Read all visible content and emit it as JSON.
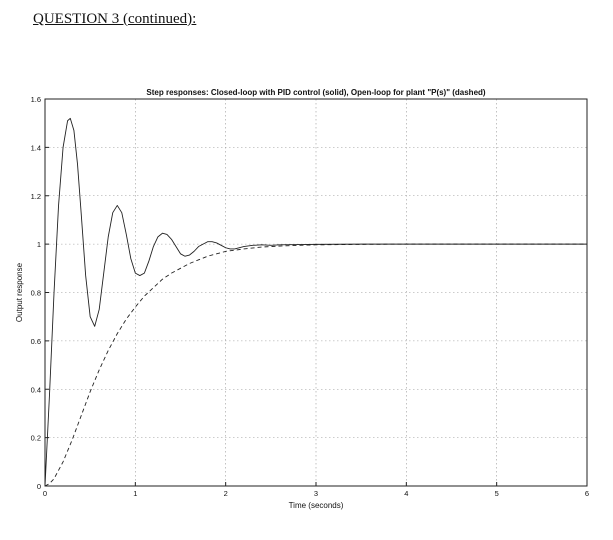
{
  "page": {
    "heading": "QUESTION 3 (continued):"
  },
  "chart_data": {
    "type": "line",
    "title": "Step responses: Closed-loop with PID control (solid), Open-loop for plant \"P(s)\" (dashed)",
    "xlabel": "Time (seconds)",
    "ylabel": "Output response",
    "xlim": [
      0,
      6
    ],
    "ylim": [
      0,
      1.6
    ],
    "xticks": [
      0,
      1,
      2,
      3,
      4,
      5,
      6
    ],
    "yticks": [
      0,
      0.2,
      0.4,
      0.6,
      0.8,
      1,
      1.2,
      1.4,
      1.6
    ],
    "xtick_labels": [
      "0",
      "1",
      "2",
      "3",
      "4",
      "5",
      "6"
    ],
    "ytick_labels": [
      "0",
      "0.2",
      "0.4",
      "0.6",
      "0.8",
      "1",
      "1.2",
      "1.4",
      "1.6"
    ],
    "grid": true,
    "line_color": "#222222",
    "grid_color": "#9a9a9a",
    "series": [
      {
        "style": "solid",
        "x": [
          0,
          0.05,
          0.1,
          0.15,
          0.2,
          0.25,
          0.28,
          0.32,
          0.36,
          0.4,
          0.45,
          0.5,
          0.55,
          0.6,
          0.65,
          0.7,
          0.75,
          0.8,
          0.85,
          0.9,
          0.95,
          1.0,
          1.05,
          1.1,
          1.15,
          1.2,
          1.25,
          1.3,
          1.35,
          1.4,
          1.45,
          1.5,
          1.55,
          1.6,
          1.65,
          1.7,
          1.75,
          1.8,
          1.85,
          1.9,
          1.95,
          2.0,
          2.05,
          2.1,
          2.2,
          2.3,
          2.4,
          2.5,
          2.6,
          2.8,
          3.0,
          3.5,
          4.0,
          4.5,
          5.0,
          5.5,
          6.0
        ],
        "y": [
          0,
          0.38,
          0.8,
          1.16,
          1.4,
          1.51,
          1.52,
          1.47,
          1.33,
          1.13,
          0.87,
          0.7,
          0.66,
          0.73,
          0.88,
          1.03,
          1.13,
          1.16,
          1.13,
          1.04,
          0.94,
          0.88,
          0.87,
          0.88,
          0.93,
          0.99,
          1.03,
          1.045,
          1.04,
          1.02,
          0.99,
          0.96,
          0.95,
          0.955,
          0.97,
          0.99,
          1.0,
          1.01,
          1.01,
          1.005,
          0.995,
          0.985,
          0.98,
          0.98,
          0.99,
          0.995,
          0.997,
          0.995,
          0.997,
          0.998,
          0.999,
          1.0,
          1.0,
          1.0,
          1.0,
          1.0,
          1.0
        ]
      },
      {
        "style": "dashed",
        "x": [
          0,
          0.05,
          0.1,
          0.2,
          0.3,
          0.4,
          0.5,
          0.6,
          0.7,
          0.8,
          0.9,
          1.0,
          1.1,
          1.2,
          1.3,
          1.4,
          1.5,
          1.6,
          1.7,
          1.8,
          1.9,
          2.0,
          2.2,
          2.4,
          2.6,
          2.8,
          3.0,
          3.5,
          4.0,
          4.5,
          5.0,
          5.5,
          6.0
        ],
        "y": [
          0,
          0.01,
          0.03,
          0.1,
          0.19,
          0.29,
          0.39,
          0.48,
          0.56,
          0.63,
          0.69,
          0.74,
          0.785,
          0.82,
          0.855,
          0.88,
          0.9,
          0.92,
          0.935,
          0.95,
          0.96,
          0.97,
          0.98,
          0.988,
          0.992,
          0.995,
          0.997,
          0.999,
          1.0,
          1.0,
          1.0,
          1.0,
          1.0
        ]
      }
    ]
  }
}
